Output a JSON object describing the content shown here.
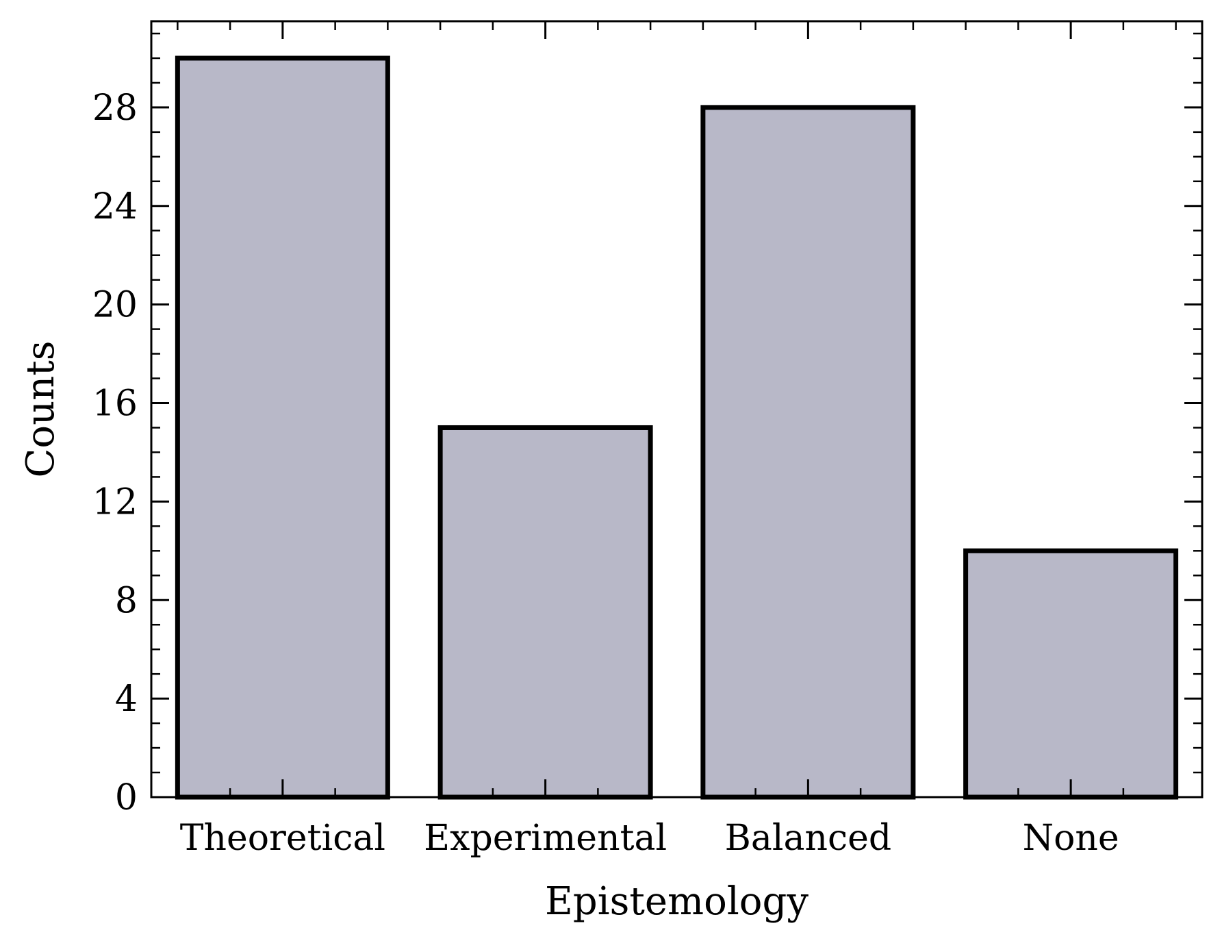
{
  "chart_data": {
    "type": "bar",
    "categories": [
      "Theoretical",
      "Experimental",
      "Balanced",
      "None"
    ],
    "values": [
      30,
      15,
      28,
      10
    ],
    "xlabel": "Epistemology",
    "ylabel": "Counts",
    "ylim": [
      0,
      31.5
    ],
    "yticks": [
      0,
      4,
      8,
      12,
      16,
      20,
      24,
      28
    ],
    "yminor_step": 1,
    "grid": false,
    "legend": "none",
    "colors": {
      "bar_fill": "#b8b8c8",
      "bar_edge": "#000000"
    }
  }
}
